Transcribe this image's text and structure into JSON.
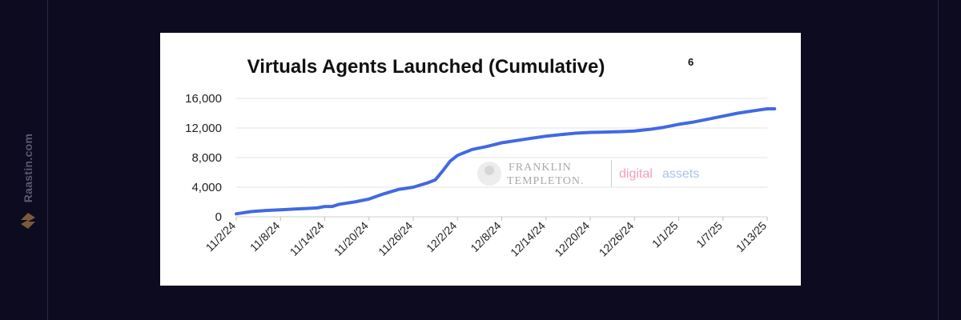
{
  "sidebar": {
    "brand_text": "Raastin.com",
    "logo_icon": "raastin-logo-icon"
  },
  "colors": {
    "page_bg": "#0d0b1f",
    "card_bg": "#ffffff",
    "line": "#4169e1",
    "grid": "#e3e3e3"
  },
  "watermark": {
    "line1": "FRANKLIN",
    "line2": "TEMPLETON.",
    "digital": "digital",
    "assets": "assets"
  },
  "chart_data": {
    "type": "line",
    "title": "Virtuals Agents Launched (Cumulative)",
    "title_superscript": "6",
    "xlabel": "",
    "ylabel": "",
    "x_tick_labels": [
      "11/2/24",
      "11/8/24",
      "11/14/24",
      "11/20/24",
      "11/26/24",
      "12/2/24",
      "12/8/24",
      "12/14/24",
      "12/20/24",
      "12/26/24",
      "1/1/25",
      "1/7/25",
      "1/13/25"
    ],
    "y_tick_labels": [
      "0",
      "4,000",
      "8,000",
      "12,000",
      "16,000"
    ],
    "ylim": [
      0,
      16000
    ],
    "grid": true,
    "series": [
      {
        "x": [
          "2024-11-02",
          "2024-11-04",
          "2024-11-06",
          "2024-11-08",
          "2024-11-10",
          "2024-11-12",
          "2024-11-13",
          "2024-11-14",
          "2024-11-15",
          "2024-11-16",
          "2024-11-18",
          "2024-11-20",
          "2024-11-22",
          "2024-11-24",
          "2024-11-26",
          "2024-11-28",
          "2024-11-29",
          "2024-11-30",
          "2024-12-01",
          "2024-12-02",
          "2024-12-04",
          "2024-12-06",
          "2024-12-08",
          "2024-12-10",
          "2024-12-12",
          "2024-12-14",
          "2024-12-16",
          "2024-12-18",
          "2024-12-20",
          "2024-12-22",
          "2024-12-24",
          "2024-12-26",
          "2024-12-28",
          "2024-12-30",
          "2025-01-01",
          "2025-01-03",
          "2025-01-05",
          "2025-01-07",
          "2025-01-09",
          "2025-01-11",
          "2025-01-13",
          "2025-01-14"
        ],
        "y": [
          400,
          700,
          850,
          950,
          1050,
          1150,
          1200,
          1400,
          1400,
          1700,
          2000,
          2400,
          3100,
          3700,
          4000,
          4600,
          5000,
          6200,
          7500,
          8300,
          9100,
          9500,
          10000,
          10300,
          10600,
          10900,
          11100,
          11300,
          11400,
          11450,
          11500,
          11600,
          11800,
          12100,
          12500,
          12800,
          13200,
          13600,
          14000,
          14300,
          14600,
          14600
        ]
      }
    ]
  }
}
